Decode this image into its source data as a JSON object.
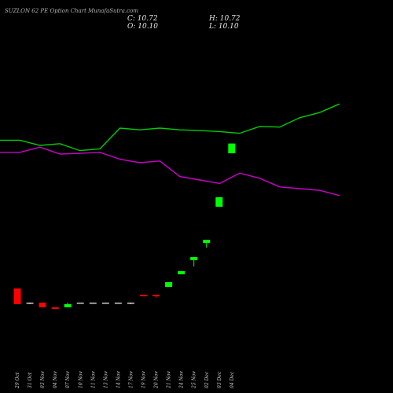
{
  "title": "SUZLON 62 PE Option  Chart MunafaSutra.com",
  "ohlc": {
    "c": "C: 10.72",
    "h": "H: 10.72",
    "o": "O: 10.10",
    "l": "L: 10.10"
  },
  "colors": {
    "background": "#000000",
    "up": "#00ff00",
    "down": "#ff0000",
    "neutral": "#cfcfcf",
    "green_line": "#00cc00",
    "magenta_line": "#cc00cc"
  },
  "chart_data": {
    "type": "candlestick",
    "categories": [
      "29 Oct",
      "31 Oct",
      "03 Nov",
      "04 Nov",
      "07 Nov",
      "10 Nov",
      "11 Nov",
      "13 Nov",
      "14 Nov",
      "17 Nov",
      "19 Nov",
      "20 Nov",
      "21 Nov",
      "24 Nov",
      "25 Nov",
      "02 Dec",
      "03 Dec",
      "04 Dec"
    ],
    "candles": [
      {
        "o": 1.5,
        "h": 1.5,
        "l": 0.5,
        "c": 0.5
      },
      {
        "o": 0.6,
        "h": 0.6,
        "l": 0.5,
        "c": 0.6
      },
      {
        "o": 0.6,
        "h": 0.6,
        "l": 0.3,
        "c": 0.3
      },
      {
        "o": 0.3,
        "h": 0.3,
        "l": 0.2,
        "c": 0.2
      },
      {
        "o": 0.3,
        "h": 0.6,
        "l": 0.3,
        "c": 0.5
      },
      {
        "o": 0.6,
        "h": 0.6,
        "l": 0.6,
        "c": 0.6
      },
      {
        "o": 0.6,
        "h": 0.6,
        "l": 0.6,
        "c": 0.6
      },
      {
        "o": 0.6,
        "h": 0.6,
        "l": 0.6,
        "c": 0.6
      },
      {
        "o": 0.6,
        "h": 0.6,
        "l": 0.6,
        "c": 0.6
      },
      {
        "o": 0.6,
        "h": 0.6,
        "l": 0.5,
        "c": 0.6
      },
      {
        "o": 1.1,
        "h": 1.1,
        "l": 1.0,
        "c": 1.0
      },
      {
        "o": 1.1,
        "h": 1.1,
        "l": 0.9,
        "c": 1.0
      },
      {
        "o": 1.6,
        "h": 1.9,
        "l": 1.6,
        "c": 1.9
      },
      {
        "o": 2.4,
        "h": 2.6,
        "l": 2.4,
        "c": 2.6
      },
      {
        "o": 3.3,
        "h": 3.5,
        "l": 2.9,
        "c": 3.5
      },
      {
        "o": 4.4,
        "h": 4.6,
        "l": 4.1,
        "c": 4.6
      },
      {
        "o": 6.7,
        "h": 7.3,
        "l": 6.7,
        "c": 7.3
      },
      {
        "o": 10.1,
        "h": 10.72,
        "l": 10.1,
        "c": 10.72
      }
    ],
    "lines": [
      {
        "color": "#00cc00",
        "values": [
          2.4,
          2.4,
          2.25,
          2.3,
          2.1,
          2.15,
          2.75,
          2.7,
          2.75,
          2.7,
          2.68,
          2.65,
          2.6,
          2.8,
          2.78,
          3.05,
          3.2,
          3.45
        ]
      },
      {
        "color": "#cc00cc",
        "values": [
          2.05,
          2.05,
          2.2,
          2.0,
          2.02,
          2.05,
          1.85,
          1.75,
          1.8,
          1.35,
          1.25,
          1.15,
          1.45,
          1.3,
          1.05,
          1.0,
          0.95,
          0.8
        ]
      }
    ]
  }
}
